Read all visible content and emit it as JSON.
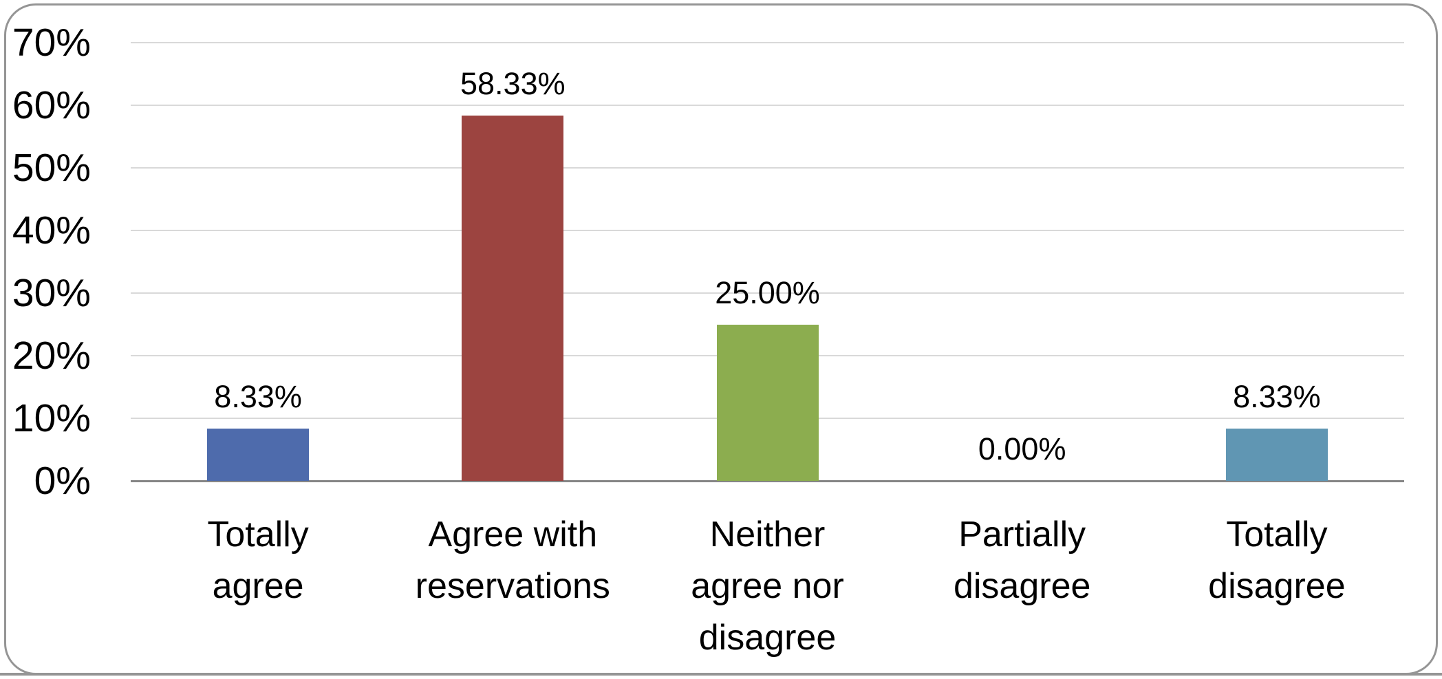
{
  "chart_data": {
    "type": "bar",
    "categories": [
      "Totally\nagree",
      "Agree with\nreservations",
      "Neither\nagree nor\ndisagree",
      "Partially\ndisagree",
      "Totally\ndisagree"
    ],
    "values": [
      8.33,
      58.33,
      25.0,
      0.0,
      8.33
    ],
    "display_values": [
      "8.33%",
      "58.33%",
      "25.00%",
      "0.00%",
      "8.33%"
    ],
    "bar_colors": [
      "#4e6bac",
      "#9c4440",
      "#8cad4f",
      null,
      "#6096b3"
    ],
    "title": "",
    "xlabel": "",
    "ylabel": "",
    "ylim": [
      0,
      70
    ],
    "yticks": [
      0,
      10,
      20,
      30,
      40,
      50,
      60,
      70
    ],
    "ytick_labels": [
      "0%",
      "10%",
      "20%",
      "30%",
      "40%",
      "50%",
      "60%",
      "70%"
    ],
    "grid": true,
    "legend": false,
    "data_labels": true
  },
  "theme": {
    "background": "#ffffff",
    "frame_border_color": "#959595",
    "gridline_color": "#d9d9d9",
    "axis_line_color": "#858585",
    "text_color": "#000000"
  }
}
